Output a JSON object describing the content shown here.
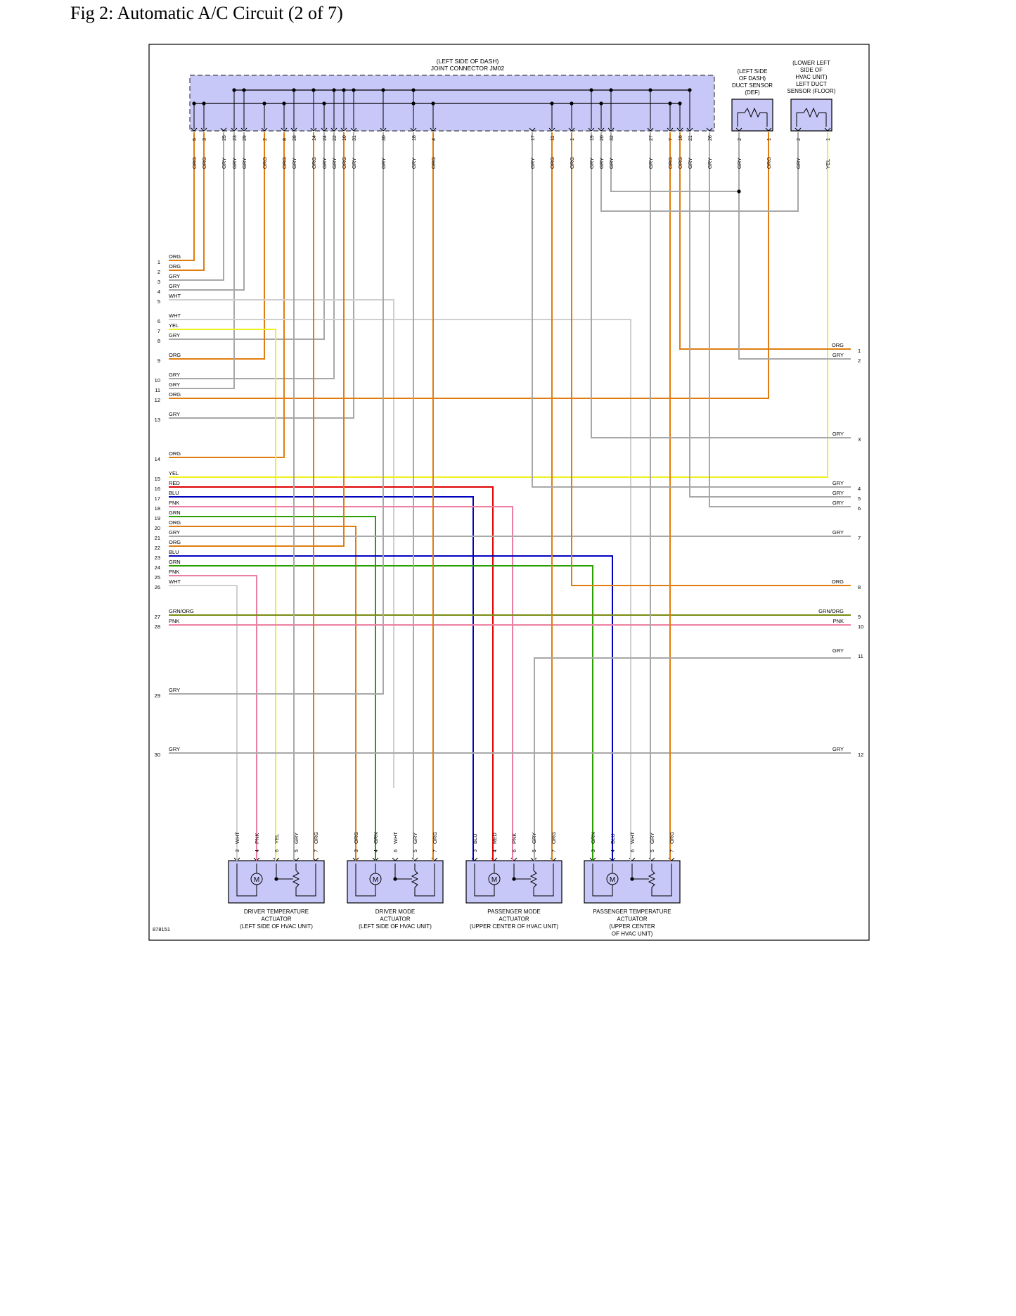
{
  "title": "Fig 2: Automatic A/C Circuit (2 of 7)",
  "figure_id": "878151",
  "colors": {
    "ORG": "#e07d10",
    "GRY": "#a8a8a8",
    "WHT": "#cfcfcf",
    "YEL": "#f0f020",
    "RED": "#e00000",
    "BLU": "#0000c0",
    "PNK": "#ec7fa0",
    "GRN": "#2aa000",
    "GRN/ORG": "#7a8a10",
    "box_fill": "#c8c8f8"
  },
  "joint_connector": {
    "label_line1": "(LEFT SIDE OF DASH)",
    "label_line2": "JOINT CONNECTOR JM02",
    "pins": [
      {
        "pin": "5",
        "color": "ORG"
      },
      {
        "pin": "3",
        "color": "ORG"
      },
      {
        "pin": "25",
        "color": "GRY"
      },
      {
        "pin": "23",
        "color": "GRY"
      },
      {
        "pin": "29",
        "color": "GRY"
      },
      {
        "pin": "2",
        "color": "ORG"
      },
      {
        "pin": "8",
        "color": "ORG"
      },
      {
        "pin": "28",
        "color": "GRY"
      },
      {
        "pin": "14",
        "color": "ORG"
      },
      {
        "pin": "24",
        "color": "GRY"
      },
      {
        "pin": "22",
        "color": "GRY"
      },
      {
        "pin": "10",
        "color": "ORG"
      },
      {
        "pin": "31",
        "color": "GRY"
      },
      {
        "pin": "30",
        "color": "GRY"
      },
      {
        "pin": "18",
        "color": "GRY"
      },
      {
        "pin": "4",
        "color": "ORG"
      },
      {
        "pin": "17",
        "color": "GRY"
      },
      {
        "pin": "11",
        "color": "ORG"
      },
      {
        "pin": "1",
        "color": "ORG"
      },
      {
        "pin": "19",
        "color": "GRY"
      },
      {
        "pin": "20",
        "color": "GRY"
      },
      {
        "pin": "32",
        "color": "GRY"
      },
      {
        "pin": "27",
        "color": "GRY"
      },
      {
        "pin": "7",
        "color": "ORG"
      },
      {
        "pin": "16",
        "color": "ORG"
      },
      {
        "pin": "21",
        "color": "GRY"
      },
      {
        "pin": "26",
        "color": "GRY"
      }
    ]
  },
  "def_sensor": {
    "label_lines": [
      "(LEFT SIDE",
      "OF DASH)",
      "DUCT SENSOR",
      "(DEF)"
    ],
    "pins": [
      {
        "pin": "2",
        "color": "GRY"
      },
      {
        "pin": "1",
        "color": "ORG"
      }
    ]
  },
  "floor_sensor": {
    "label_lines": [
      "(LOWER LEFT",
      "SIDE OF",
      "HVAC UNIT)",
      "LEFT DUCT",
      "SENSOR (FLOOR)"
    ],
    "pins": [
      {
        "pin": "2",
        "color": "GRY"
      },
      {
        "pin": "1",
        "color": "YEL"
      }
    ]
  },
  "left_terminals": [
    {
      "n": "1",
      "color": "ORG"
    },
    {
      "n": "2",
      "color": "ORG"
    },
    {
      "n": "3",
      "color": "GRY"
    },
    {
      "n": "4",
      "color": "GRY"
    },
    {
      "n": "5",
      "color": "WHT"
    },
    {
      "n": "6",
      "color": "WHT"
    },
    {
      "n": "7",
      "color": "YEL"
    },
    {
      "n": "8",
      "color": "GRY"
    },
    {
      "n": "9",
      "color": "ORG"
    },
    {
      "n": "10",
      "color": "GRY"
    },
    {
      "n": "11",
      "color": "GRY"
    },
    {
      "n": "12",
      "color": "ORG"
    },
    {
      "n": "13",
      "color": "GRY"
    },
    {
      "n": "14",
      "color": "ORG"
    },
    {
      "n": "15",
      "color": "YEL"
    },
    {
      "n": "16",
      "color": "RED"
    },
    {
      "n": "17",
      "color": "BLU"
    },
    {
      "n": "18",
      "color": "PNK"
    },
    {
      "n": "19",
      "color": "GRN"
    },
    {
      "n": "20",
      "color": "ORG"
    },
    {
      "n": "21",
      "color": "GRY"
    },
    {
      "n": "22",
      "color": "ORG"
    },
    {
      "n": "23",
      "color": "BLU"
    },
    {
      "n": "24",
      "color": "GRN"
    },
    {
      "n": "25",
      "color": "PNK"
    },
    {
      "n": "26",
      "color": "WHT"
    },
    {
      "n": "27",
      "color": "GRN/ORG"
    },
    {
      "n": "28",
      "color": "PNK"
    },
    {
      "n": "29",
      "color": "GRY"
    },
    {
      "n": "30",
      "color": "GRY"
    }
  ],
  "right_terminals": [
    {
      "n": "1",
      "color": "ORG"
    },
    {
      "n": "2",
      "color": "GRY"
    },
    {
      "n": "3",
      "color": "GRY"
    },
    {
      "n": "4",
      "color": "GRY"
    },
    {
      "n": "5",
      "color": "GRY"
    },
    {
      "n": "6",
      "color": "GRY"
    },
    {
      "n": "7",
      "color": "GRY"
    },
    {
      "n": "8",
      "color": "ORG"
    },
    {
      "n": "9",
      "color": "GRN/ORG"
    },
    {
      "n": "10",
      "color": "PNK"
    },
    {
      "n": "11",
      "color": "GRY"
    },
    {
      "n": "12",
      "color": "GRY"
    }
  ],
  "actuators": [
    {
      "label_lines": [
        "DRIVER TEMPERATURE",
        "ACTUATOR",
        "(LEFT SIDE OF HVAC UNIT)"
      ],
      "pins": [
        {
          "pin": "3",
          "color": "WHT"
        },
        {
          "pin": "4",
          "color": "PNK"
        },
        {
          "pin": "6",
          "color": "YEL"
        },
        {
          "pin": "5",
          "color": "GRY"
        },
        {
          "pin": "7",
          "color": "ORG"
        }
      ]
    },
    {
      "label_lines": [
        "DRIVER MODE",
        "ACTUATOR",
        "(LEFT SIDE OF HVAC UNIT)"
      ],
      "pins": [
        {
          "pin": "3",
          "color": "ORG"
        },
        {
          "pin": "4",
          "color": "GRN"
        },
        {
          "pin": "6",
          "color": "WHT"
        },
        {
          "pin": "5",
          "color": "GRY"
        },
        {
          "pin": "7",
          "color": "ORG"
        }
      ]
    },
    {
      "label_lines": [
        "PASSENGER MODE",
        "ACTUATOR",
        "(UPPER CENTER OF HVAC UNIT)"
      ],
      "pins": [
        {
          "pin": "3",
          "color": "BLU"
        },
        {
          "pin": "4",
          "color": "RED"
        },
        {
          "pin": "6",
          "color": "PNK"
        },
        {
          "pin": "5",
          "color": "GRY"
        },
        {
          "pin": "7",
          "color": "ORG"
        }
      ]
    },
    {
      "label_lines": [
        "PASSENGER TEMPERATURE",
        "ACTUATOR",
        "(UPPER CENTER",
        "OF HVAC UNIT)"
      ],
      "pins": [
        {
          "pin": "3",
          "color": "GRN"
        },
        {
          "pin": "4",
          "color": "BLU"
        },
        {
          "pin": "6",
          "color": "WHT"
        },
        {
          "pin": "5",
          "color": "GRY"
        },
        {
          "pin": "7",
          "color": "ORG"
        }
      ]
    }
  ],
  "motor_symbol": "M"
}
